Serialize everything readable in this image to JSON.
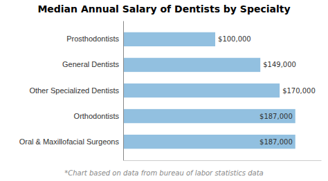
{
  "chart_data": {
    "type": "bar",
    "orientation": "horizontal",
    "title": "Median Annual Salary of Dentists by Specialty",
    "categories": [
      "Oral & Maxillofacial Surgeons",
      "Orthodontists",
      "Other Specialized Dentists",
      "General Dentists",
      "Prosthodontists"
    ],
    "values": [
      187000,
      187000,
      170000,
      149000,
      100000
    ],
    "value_labels": [
      "$187,000",
      "$187,000",
      "$170,000",
      "$149,000",
      "$100,000"
    ],
    "data_labels": true,
    "color": "#92C0E0",
    "xlim": [
      0,
      215000
    ],
    "tick_labels": "y",
    "annotations": [
      "*Chart based on data from bureau of labor statistics data"
    ]
  }
}
